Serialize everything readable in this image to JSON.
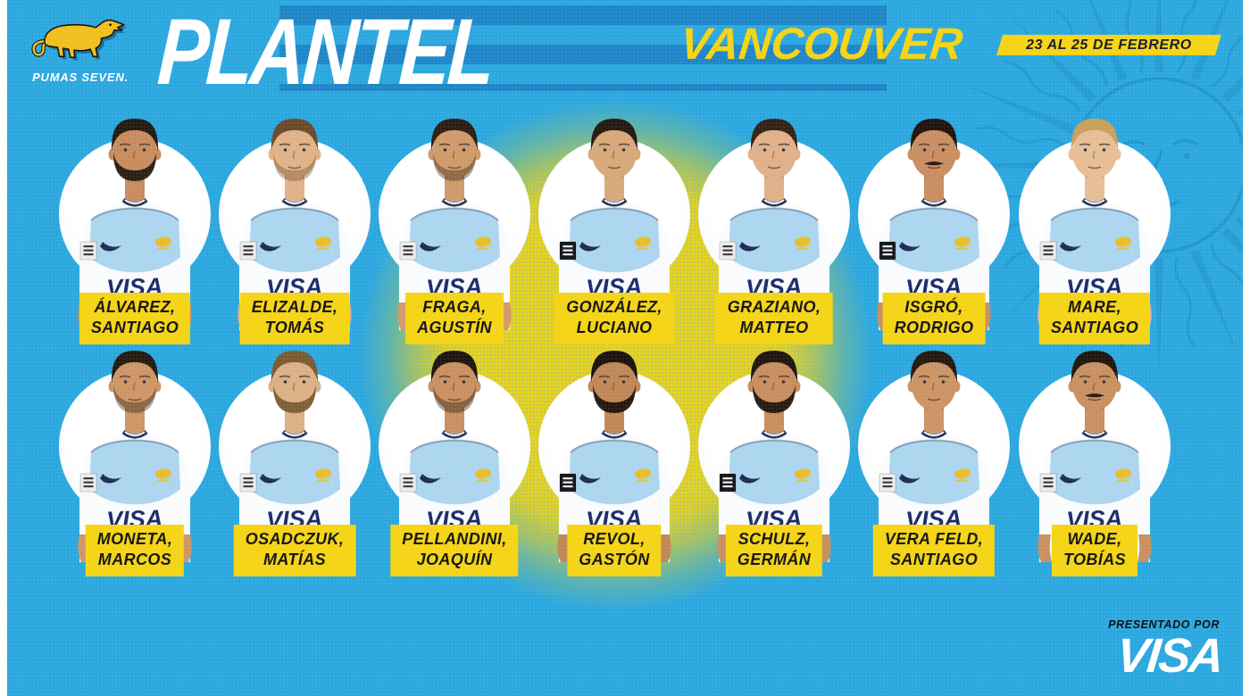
{
  "header": {
    "brand_name": "PUMAS SEVEN.",
    "title": "PLANTEL",
    "event_city": "VANCOUVER",
    "date_range": "23 AL 25 DE FEBRERO"
  },
  "footer": {
    "presented_by": "PRESENTADO POR",
    "sponsor_wordmark": "VISA"
  },
  "jersey_sponsor": "VISA",
  "colors": {
    "bg": "#2BA7DF",
    "stripe": "#1E86C8",
    "yellow": "#F4D414",
    "labeltext": "#141414",
    "visa-navy": "#1B2A6B",
    "jersey-blue": "#A9D4EE",
    "puma-gold": "#EFBF1D",
    "watermark-blue": "#0D5F92"
  },
  "players": [
    {
      "surname": "ÁLVAREZ,",
      "given": "SANTIAGO",
      "avatar": {
        "skin": "#C88B5E",
        "hair": "#241A12",
        "facial": "beard",
        "patch": "light"
      }
    },
    {
      "surname": "ELIZALDE,",
      "given": "TOMÁS",
      "avatar": {
        "skin": "#E0B287",
        "hair": "#6B4A2B",
        "facial": "scruff",
        "patch": "light"
      }
    },
    {
      "surname": "FRAGA,",
      "given": "AGUSTÍN",
      "avatar": {
        "skin": "#D09A6A",
        "hair": "#2A1E14",
        "facial": "scruff",
        "patch": "light"
      }
    },
    {
      "surname": "GONZÁLEZ,",
      "given": "LUCIANO",
      "avatar": {
        "skin": "#D8A878",
        "hair": "#241A12",
        "facial": "clean",
        "patch": "dark"
      }
    },
    {
      "surname": "GRAZIANO,",
      "given": "MATTEO",
      "avatar": {
        "skin": "#E0B088",
        "hair": "#332217",
        "facial": "clean",
        "patch": "light"
      }
    },
    {
      "surname": "ISGRÓ,",
      "given": "RODRIGO",
      "avatar": {
        "skin": "#C98E60",
        "hair": "#1F150E",
        "facial": "mustache",
        "patch": "dark"
      }
    },
    {
      "surname": "MARE,",
      "given": "SANTIAGO",
      "avatar": {
        "skin": "#E6BE96",
        "hair": "#C9A05A",
        "facial": "clean",
        "patch": "light"
      }
    },
    {
      "surname": "MONETA,",
      "given": "MARCOS",
      "avatar": {
        "skin": "#CE9565",
        "hair": "#241A10",
        "facial": "scruff",
        "patch": "light"
      }
    },
    {
      "surname": "OSADCZUK,",
      "given": "MATÍAS",
      "avatar": {
        "skin": "#DCAF85",
        "hair": "#7A5A33",
        "facial": "beard",
        "patch": "light"
      }
    },
    {
      "surname": "PELLANDINI,",
      "given": "JOAQUÍN",
      "avatar": {
        "skin": "#C98F60",
        "hair": "#1E150D",
        "facial": "scruff",
        "patch": "light"
      }
    },
    {
      "surname": "REVOL,",
      "given": "GASTÓN",
      "avatar": {
        "skin": "#C08756",
        "hair": "#1C130C",
        "facial": "beard",
        "patch": "dark"
      }
    },
    {
      "surname": "SCHULZ,",
      "given": "GERMÁN",
      "avatar": {
        "skin": "#C88E5E",
        "hair": "#20160E",
        "facial": "beard",
        "patch": "dark"
      }
    },
    {
      "surname": "VERA FELD,",
      "given": "SANTIAGO",
      "avatar": {
        "skin": "#CC9364",
        "hair": "#231910",
        "facial": "clean",
        "patch": "light"
      }
    },
    {
      "surname": "WADE,",
      "given": "TOBÍAS",
      "avatar": {
        "skin": "#C99060",
        "hair": "#20160E",
        "facial": "mustache",
        "patch": "light"
      }
    }
  ]
}
